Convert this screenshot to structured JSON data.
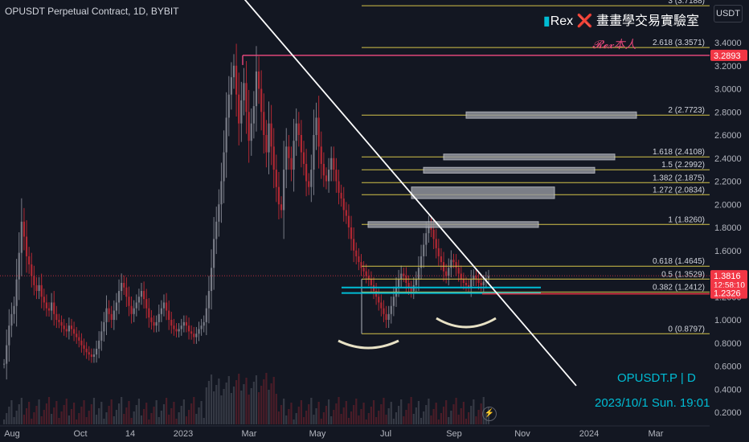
{
  "header": {
    "title": "OPUSDT Perpetual Contract, 1D, BYBIT"
  },
  "watermark": {
    "bar": "▮",
    "name": "Rex",
    "x": "❌",
    "slogan": "畫畫學交易實驗室"
  },
  "signature": "𝓡𝓮𝔁本人",
  "currency_button": "USDT",
  "overlay": {
    "symbol": "OPUSDT.P | D",
    "datetime": "2023/10/1 Sun. 19:01"
  },
  "flash_icon": "⚡",
  "colors": {
    "up": "#089981",
    "down": "#f23645",
    "candle_down": "#b22833",
    "candle_up": "#787b86",
    "fib": "#d4c34a",
    "trend": "#ffffff",
    "support": "#00bcd4",
    "bg": "#131722"
  },
  "chart_data": {
    "type": "candlestick",
    "title": "OPUSDT Perpetual Contract, 1D, BYBIT",
    "y_axis": {
      "scale": "linear",
      "ticks": [
        "3.4000",
        "3.2000",
        "3.0000",
        "2.8000",
        "2.6000",
        "2.4000",
        "2.2000",
        "2.0000",
        "1.8000",
        "1.6000",
        "1.4000",
        "1.2000",
        "1.0000",
        "0.8000",
        "0.6000",
        "0.4000",
        "0.2000"
      ],
      "range": [
        0.12,
        3.6
      ]
    },
    "x_axis": {
      "ticks": [
        "Aug",
        "Oct",
        "14",
        "2023",
        "Mar",
        "May",
        "Jul",
        "Sep",
        "Nov",
        "2024",
        "Mar"
      ]
    },
    "price_labels": [
      {
        "label": "3.2893",
        "value": 3.2893,
        "color": "#f23645"
      },
      {
        "label": "1.3816",
        "value": 1.3816,
        "color": "#f23645",
        "sub": "12:58:10"
      },
      {
        "label": "1.2326",
        "value": 1.2326,
        "color": "#f23645"
      }
    ],
    "fib_levels": [
      {
        "label": "3 (3.7188)",
        "value": 3.7188
      },
      {
        "label": "2.618 (3.3571)",
        "value": 3.3571
      },
      {
        "label": "2 (2.7723)",
        "value": 2.7723
      },
      {
        "label": "1.618 (2.4108)",
        "value": 2.4108
      },
      {
        "label": "1.5 (2.2992)",
        "value": 2.2992
      },
      {
        "label": "1.382 (2.1875)",
        "value": 2.1875
      },
      {
        "label": "1.272 (2.0834)",
        "value": 2.0834
      },
      {
        "label": "1 (1.8260)",
        "value": 1.826
      },
      {
        "label": "0.618 (1.4645)",
        "value": 1.4645
      },
      {
        "label": "0.5 (1.3529)",
        "value": 1.3529
      },
      {
        "label": "0.382 (1.2412)",
        "value": 1.2412
      },
      {
        "label": "0 (0.8797)",
        "value": 0.8797
      }
    ],
    "resistance_line": {
      "value": 3.2893
    },
    "trendline": {
      "start": {
        "x": "Jan 2023",
        "y": 4.15
      },
      "end": {
        "x": "Oct 2023",
        "y": 0.43
      }
    },
    "support_zone": {
      "low": 1.2326,
      "high": 1.28
    },
    "target_zones": [
      {
        "low": 2.745,
        "high": 2.8
      },
      {
        "low": 2.385,
        "high": 2.435
      },
      {
        "low": 2.27,
        "high": 2.32
      },
      {
        "low": 2.05,
        "high": 2.15
      },
      {
        "low": 1.8,
        "high": 1.85
      }
    ],
    "prices": [
      0.62,
      0.78,
      0.95,
      1.05,
      1.12,
      1.35,
      1.58,
      1.85,
      1.72,
      1.55,
      1.48,
      1.38,
      1.3,
      1.25,
      1.3,
      1.2,
      1.15,
      1.1,
      1.08,
      1.15,
      1.05,
      1.0,
      0.98,
      0.95,
      0.92,
      0.9,
      0.95,
      0.92,
      0.88,
      0.85,
      0.82,
      0.78,
      0.75,
      0.72,
      0.7,
      0.68,
      0.7,
      0.75,
      0.82,
      0.9,
      0.98,
      1.1,
      1.05,
      1.0,
      1.08,
      1.15,
      1.25,
      1.32,
      1.28,
      1.2,
      1.12,
      1.05,
      1.1,
      1.15,
      1.2,
      1.25,
      1.18,
      1.1,
      1.02,
      0.98,
      0.95,
      0.98,
      1.05,
      1.1,
      1.15,
      1.08,
      1.0,
      0.95,
      0.92,
      0.9,
      0.92,
      0.95,
      0.98,
      0.95,
      0.9,
      0.88,
      0.85,
      0.88,
      0.92,
      0.95,
      0.98,
      1.1,
      1.25,
      1.45,
      1.7,
      1.85,
      2.0,
      2.2,
      2.45,
      2.75,
      2.95,
      3.1,
      3.2,
      2.95,
      2.7,
      2.9,
      3.05,
      2.8,
      2.55,
      2.7,
      2.85,
      3.15,
      3.0,
      2.8,
      2.6,
      2.45,
      2.7,
      2.5,
      2.3,
      2.15,
      2.0,
      1.95,
      2.3,
      2.5,
      2.4,
      2.3,
      2.55,
      2.7,
      2.6,
      2.45,
      2.35,
      2.2,
      2.15,
      2.3,
      2.6,
      2.75,
      2.5,
      2.35,
      2.25,
      2.2,
      2.3,
      2.4,
      2.3,
      2.2,
      2.1,
      2.05,
      1.95,
      1.9,
      1.8,
      1.7,
      1.6,
      1.55,
      1.5,
      1.45,
      1.42,
      1.38,
      1.35,
      1.3,
      1.25,
      1.2,
      1.15,
      1.1,
      1.05,
      1.0,
      1.05,
      1.12,
      1.2,
      1.28,
      1.35,
      1.4,
      1.38,
      1.32,
      1.28,
      1.25,
      1.3,
      1.35,
      1.45,
      1.55,
      1.65,
      1.75,
      1.82,
      1.78,
      1.7,
      1.62,
      1.55,
      1.5,
      1.42,
      1.38,
      1.45,
      1.52,
      1.5,
      1.45,
      1.4,
      1.35,
      1.32,
      1.3,
      1.28,
      1.35,
      1.38,
      1.35,
      1.32,
      1.3,
      1.33,
      1.36,
      1.38
    ]
  }
}
